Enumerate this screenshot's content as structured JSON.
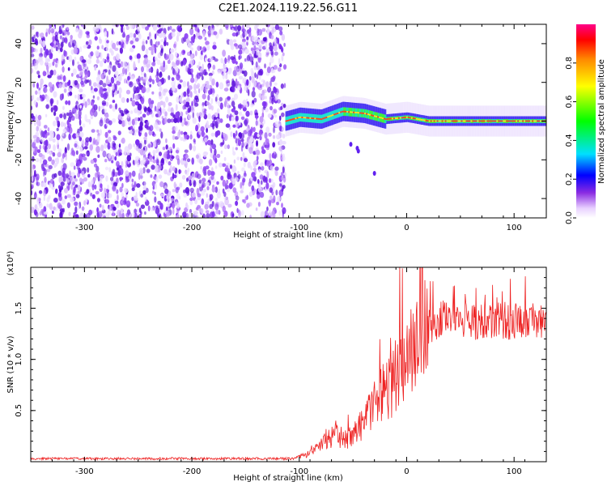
{
  "title": "C2E1.2024.119.22.56.G11",
  "colors": {
    "spectrogram_scatter": "#7a2cf0",
    "snr_line": "#ee2222",
    "axes": "#000000"
  },
  "chart_data": [
    {
      "type": "heatmap",
      "xlabel": "Height of straight line (km)",
      "ylabel": "Frequency (Hz)",
      "xlim": [
        -350,
        130
      ],
      "ylim": [
        -50,
        50
      ],
      "x_ticks": [
        -300,
        -200,
        -100,
        0,
        100
      ],
      "y_ticks": [
        -40,
        -20,
        0,
        20,
        40
      ],
      "regions": [
        {
          "x": [
            -350,
            -113
          ],
          "y": [
            -50,
            50
          ],
          "level": 0.18
        },
        {
          "x": [
            -113,
            130
          ],
          "y": [
            -1,
            3
          ],
          "level": 0.55
        }
      ],
      "ridge": {
        "x": [
          -113,
          -100,
          -80,
          -60,
          -40,
          -20,
          0,
          20,
          60,
          100,
          130
        ],
        "y": [
          0,
          2,
          1,
          5,
          4,
          1,
          2,
          0,
          0,
          0,
          0
        ]
      },
      "colorbar": {
        "label": "Normalized spectral amplitude",
        "ticks": [
          0.0,
          0.2,
          0.4,
          0.6,
          0.8
        ],
        "range": [
          0,
          1
        ]
      }
    },
    {
      "type": "line",
      "xlabel": "Height of straight line (km)",
      "ylabel": "SNR (10 * v/v)",
      "y_multiplier": "(x10⁴)",
      "xlim": [
        -350,
        130
      ],
      "ylim": [
        0,
        1.9
      ],
      "x_ticks": [
        -300,
        -200,
        -100,
        0,
        100
      ],
      "y_ticks": [
        0.5,
        1.0,
        1.5
      ],
      "series": [
        {
          "x": [
            -350,
            -300,
            -250,
            -200,
            -150,
            -105,
            -95,
            -85,
            -75,
            -65,
            -55,
            -45,
            -35,
            -25,
            -15,
            -5,
            5,
            15,
            25,
            35,
            45,
            55,
            65,
            75,
            85,
            95,
            105,
            115,
            130
          ],
          "y": [
            0.03,
            0.03,
            0.03,
            0.03,
            0.03,
            0.03,
            0.06,
            0.14,
            0.22,
            0.25,
            0.22,
            0.32,
            0.48,
            0.62,
            0.75,
            0.95,
            1.1,
            1.25,
            1.35,
            1.42,
            1.4,
            1.38,
            1.36,
            1.37,
            1.38,
            1.36,
            1.38,
            1.37,
            1.38
          ]
        }
      ]
    }
  ]
}
